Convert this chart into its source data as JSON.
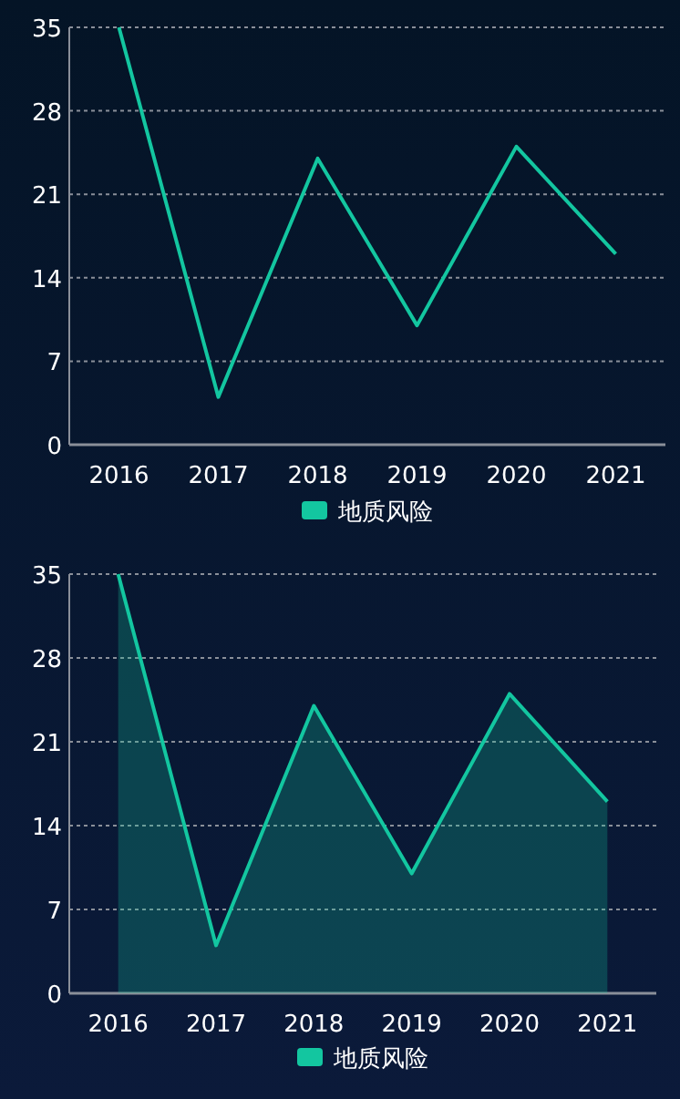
{
  "chart_data": [
    {
      "type": "line",
      "categories": [
        "2016",
        "2017",
        "2018",
        "2019",
        "2020",
        "2021"
      ],
      "series": [
        {
          "name": "地质风险",
          "color": "#13c6a0",
          "values": [
            35,
            4,
            24,
            10,
            25,
            16
          ]
        }
      ],
      "ylim": [
        0,
        35
      ],
      "yticks": [
        0,
        7,
        14,
        21,
        28,
        35
      ],
      "grid": "y",
      "legend": "bottom"
    },
    {
      "type": "area",
      "categories": [
        "2016",
        "2017",
        "2018",
        "2019",
        "2020",
        "2021"
      ],
      "series": [
        {
          "name": "地质风险",
          "color": "#13c6a0",
          "values": [
            35,
            4,
            24,
            10,
            25,
            16
          ]
        }
      ],
      "ylim": [
        0,
        35
      ],
      "yticks": [
        0,
        7,
        14,
        21,
        28,
        35
      ],
      "grid": "y",
      "legend": "bottom"
    }
  ]
}
